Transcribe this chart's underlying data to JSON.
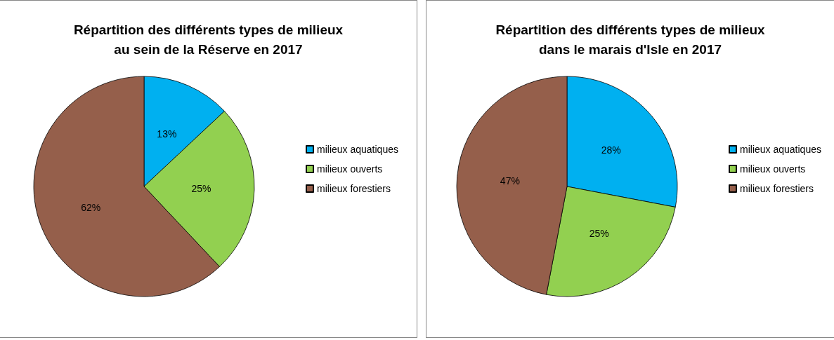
{
  "chart_data": [
    {
      "type": "pie",
      "title": "Répartition des différents types de milieux\nau sein de la Réserve en 2017",
      "categories": [
        "milieux aquatiques",
        "milieux ouverts",
        "milieux forestiers"
      ],
      "values": [
        13,
        25,
        62
      ],
      "value_labels": [
        "13%",
        "25%",
        "62%"
      ],
      "colors": [
        "#00b0f0",
        "#92d050",
        "#955f4b"
      ],
      "legend": "right"
    },
    {
      "type": "pie",
      "title": "Répartition des différents types de milieux\ndans le marais d'Isle en 2017",
      "categories": [
        "milieux aquatiques",
        "milieux ouverts",
        "milieux forestiers"
      ],
      "values": [
        28,
        25,
        47
      ],
      "value_labels": [
        "28%",
        "25%",
        "47%"
      ],
      "colors": [
        "#00b0f0",
        "#92d050",
        "#955f4b"
      ],
      "legend": "right"
    }
  ]
}
